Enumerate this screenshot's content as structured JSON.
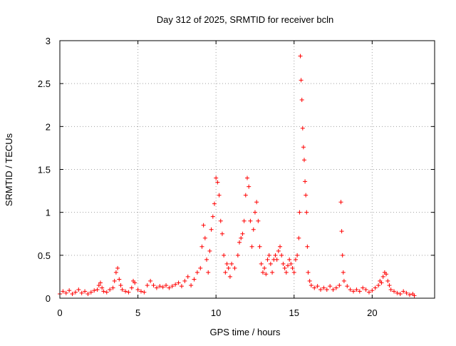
{
  "chart_data": {
    "type": "scatter",
    "title": "Day 312 of 2025, SRMTID for receiver bcln",
    "xlabel": "GPS time / hours",
    "ylabel": "SRMTID / TECUs",
    "xlim": [
      0,
      24
    ],
    "ylim": [
      0,
      3
    ],
    "xticks": [
      0,
      5,
      10,
      15,
      20
    ],
    "xtick_labels": [
      "0",
      "5",
      "10",
      "15",
      "20"
    ],
    "yticks": [
      0,
      0.5,
      1,
      1.5,
      2,
      2.5,
      3
    ],
    "ytick_labels": [
      "0",
      "0.5",
      "1",
      "1.5",
      "2",
      "2.5",
      "3"
    ],
    "grid": true,
    "marker": "+",
    "marker_color": "#ff0000",
    "series": [
      {
        "name": "SRMTID",
        "points": [
          [
            0.0,
            0.05
          ],
          [
            0.2,
            0.08
          ],
          [
            0.4,
            0.06
          ],
          [
            0.6,
            0.09
          ],
          [
            0.8,
            0.05
          ],
          [
            1.0,
            0.07
          ],
          [
            1.2,
            0.1
          ],
          [
            1.4,
            0.06
          ],
          [
            1.6,
            0.08
          ],
          [
            1.8,
            0.05
          ],
          [
            2.0,
            0.07
          ],
          [
            2.2,
            0.09
          ],
          [
            2.4,
            0.1
          ],
          [
            2.5,
            0.15
          ],
          [
            2.6,
            0.18
          ],
          [
            2.7,
            0.12
          ],
          [
            2.8,
            0.08
          ],
          [
            3.0,
            0.07
          ],
          [
            3.2,
            0.1
          ],
          [
            3.4,
            0.12
          ],
          [
            3.5,
            0.2
          ],
          [
            3.6,
            0.3
          ],
          [
            3.7,
            0.35
          ],
          [
            3.8,
            0.22
          ],
          [
            3.9,
            0.15
          ],
          [
            4.0,
            0.1
          ],
          [
            4.2,
            0.08
          ],
          [
            4.4,
            0.07
          ],
          [
            4.6,
            0.12
          ],
          [
            4.7,
            0.2
          ],
          [
            4.8,
            0.18
          ],
          [
            5.0,
            0.1
          ],
          [
            5.2,
            0.08
          ],
          [
            5.4,
            0.07
          ],
          [
            5.6,
            0.15
          ],
          [
            5.8,
            0.2
          ],
          [
            6.0,
            0.15
          ],
          [
            6.2,
            0.12
          ],
          [
            6.4,
            0.14
          ],
          [
            6.6,
            0.13
          ],
          [
            6.8,
            0.15
          ],
          [
            7.0,
            0.12
          ],
          [
            7.2,
            0.14
          ],
          [
            7.4,
            0.16
          ],
          [
            7.6,
            0.18
          ],
          [
            7.8,
            0.14
          ],
          [
            8.0,
            0.2
          ],
          [
            8.2,
            0.25
          ],
          [
            8.4,
            0.15
          ],
          [
            8.6,
            0.22
          ],
          [
            8.8,
            0.3
          ],
          [
            9.0,
            0.35
          ],
          [
            9.1,
            0.6
          ],
          [
            9.2,
            0.85
          ],
          [
            9.3,
            0.7
          ],
          [
            9.4,
            0.45
          ],
          [
            9.5,
            0.3
          ],
          [
            9.6,
            0.55
          ],
          [
            9.7,
            0.8
          ],
          [
            9.8,
            0.95
          ],
          [
            9.9,
            1.1
          ],
          [
            10.0,
            1.4
          ],
          [
            10.1,
            1.35
          ],
          [
            10.2,
            1.2
          ],
          [
            10.3,
            0.9
          ],
          [
            10.4,
            0.75
          ],
          [
            10.5,
            0.5
          ],
          [
            10.6,
            0.3
          ],
          [
            10.7,
            0.4
          ],
          [
            10.8,
            0.35
          ],
          [
            10.9,
            0.25
          ],
          [
            11.0,
            0.4
          ],
          [
            11.2,
            0.35
          ],
          [
            11.4,
            0.5
          ],
          [
            11.5,
            0.65
          ],
          [
            11.6,
            0.7
          ],
          [
            11.7,
            0.75
          ],
          [
            11.8,
            0.9
          ],
          [
            11.9,
            1.2
          ],
          [
            12.0,
            1.4
          ],
          [
            12.1,
            1.3
          ],
          [
            12.2,
            0.9
          ],
          [
            12.3,
            0.6
          ],
          [
            12.4,
            0.8
          ],
          [
            12.5,
            1.0
          ],
          [
            12.6,
            1.12
          ],
          [
            12.7,
            0.9
          ],
          [
            12.8,
            0.6
          ],
          [
            12.9,
            0.4
          ],
          [
            13.0,
            0.3
          ],
          [
            13.1,
            0.35
          ],
          [
            13.2,
            0.28
          ],
          [
            13.3,
            0.45
          ],
          [
            13.4,
            0.5
          ],
          [
            13.5,
            0.4
          ],
          [
            13.6,
            0.3
          ],
          [
            13.7,
            0.45
          ],
          [
            13.8,
            0.5
          ],
          [
            13.9,
            0.45
          ],
          [
            14.0,
            0.55
          ],
          [
            14.1,
            0.6
          ],
          [
            14.2,
            0.5
          ],
          [
            14.3,
            0.4
          ],
          [
            14.4,
            0.35
          ],
          [
            14.5,
            0.3
          ],
          [
            14.6,
            0.38
          ],
          [
            14.7,
            0.45
          ],
          [
            14.8,
            0.4
          ],
          [
            14.9,
            0.35
          ],
          [
            15.0,
            0.3
          ],
          [
            15.1,
            0.45
          ],
          [
            15.2,
            0.5
          ],
          [
            15.3,
            0.7
          ],
          [
            15.35,
            1.0
          ],
          [
            15.4,
            2.82
          ],
          [
            15.45,
            2.54
          ],
          [
            15.5,
            2.31
          ],
          [
            15.55,
            1.98
          ],
          [
            15.6,
            1.76
          ],
          [
            15.65,
            1.61
          ],
          [
            15.7,
            1.36
          ],
          [
            15.75,
            1.2
          ],
          [
            15.8,
            1.0
          ],
          [
            15.85,
            0.6
          ],
          [
            15.9,
            0.3
          ],
          [
            16.0,
            0.2
          ],
          [
            16.1,
            0.15
          ],
          [
            16.3,
            0.12
          ],
          [
            16.5,
            0.14
          ],
          [
            16.7,
            0.1
          ],
          [
            16.9,
            0.12
          ],
          [
            17.1,
            0.1
          ],
          [
            17.3,
            0.14
          ],
          [
            17.5,
            0.1
          ],
          [
            17.7,
            0.12
          ],
          [
            17.9,
            0.15
          ],
          [
            18.0,
            1.12
          ],
          [
            18.05,
            0.78
          ],
          [
            18.1,
            0.5
          ],
          [
            18.15,
            0.3
          ],
          [
            18.2,
            0.2
          ],
          [
            18.4,
            0.14
          ],
          [
            18.6,
            0.1
          ],
          [
            18.8,
            0.08
          ],
          [
            19.0,
            0.1
          ],
          [
            19.2,
            0.08
          ],
          [
            19.4,
            0.12
          ],
          [
            19.6,
            0.1
          ],
          [
            19.8,
            0.07
          ],
          [
            20.0,
            0.09
          ],
          [
            20.2,
            0.12
          ],
          [
            20.4,
            0.15
          ],
          [
            20.5,
            0.2
          ],
          [
            20.6,
            0.18
          ],
          [
            20.7,
            0.25
          ],
          [
            20.8,
            0.3
          ],
          [
            20.9,
            0.28
          ],
          [
            21.0,
            0.2
          ],
          [
            21.1,
            0.15
          ],
          [
            21.2,
            0.1
          ],
          [
            21.4,
            0.08
          ],
          [
            21.6,
            0.06
          ],
          [
            21.8,
            0.05
          ],
          [
            22.0,
            0.08
          ],
          [
            22.2,
            0.06
          ],
          [
            22.4,
            0.04
          ],
          [
            22.6,
            0.05
          ],
          [
            22.7,
            0.03
          ]
        ]
      }
    ]
  }
}
